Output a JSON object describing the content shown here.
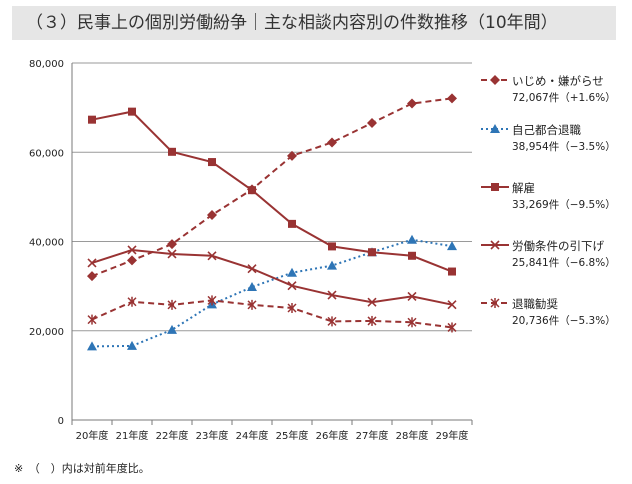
{
  "title": "（３）民事上の個別労働紛争｜主な相談内容別の件数推移（10年間）",
  "footnote": "※　（　）内は対前年度比。",
  "chart_data": {
    "type": "line",
    "categories": [
      "20年度",
      "21年度",
      "22年度",
      "23年度",
      "24年度",
      "25年度",
      "26年度",
      "27年度",
      "28年度",
      "29年度"
    ],
    "ylim": [
      0,
      80000
    ],
    "yticks": [
      0,
      20000,
      40000,
      60000,
      80000
    ],
    "ytick_labels": [
      "0",
      "20,000",
      "40,000",
      "60,000",
      "80,000"
    ],
    "grid": true,
    "legend_position": "right",
    "series": [
      {
        "name": "いじめ・嫌がらせ",
        "detail": "72,067件（+1.6%）",
        "color": "#993333",
        "marker": "diamond",
        "dash": "dashed",
        "values": [
          32242,
          35759,
          39405,
          45939,
          51670,
          59197,
          62191,
          66566,
          70917,
          72067
        ]
      },
      {
        "name": "自己都合退職",
        "detail": "38,954件（−3.5%）",
        "color": "#2e75b6",
        "marker": "triangle",
        "dash": "dotted",
        "values": [
          16500,
          16600,
          20200,
          25900,
          29800,
          33000,
          34600,
          37600,
          40400,
          38954
        ]
      },
      {
        "name": "解雇",
        "detail": "33,269件（−9.5%）",
        "color": "#993333",
        "marker": "square",
        "dash": "solid",
        "values": [
          67300,
          69100,
          60100,
          57800,
          51500,
          43950,
          38900,
          37600,
          36800,
          33269
        ]
      },
      {
        "name": "労働条件の引下げ",
        "detail": "25,841件（−6.8%）",
        "color": "#993333",
        "marker": "x",
        "dash": "solid",
        "values": [
          35200,
          38100,
          37200,
          36800,
          33900,
          30100,
          28000,
          26400,
          27700,
          25841
        ]
      },
      {
        "name": "退職勧奨",
        "detail": "20,736件（−5.3%）",
        "color": "#993333",
        "marker": "star",
        "dash": "dashed",
        "values": [
          22500,
          26500,
          25800,
          26800,
          25800,
          25100,
          22100,
          22200,
          21900,
          20736
        ]
      }
    ]
  }
}
